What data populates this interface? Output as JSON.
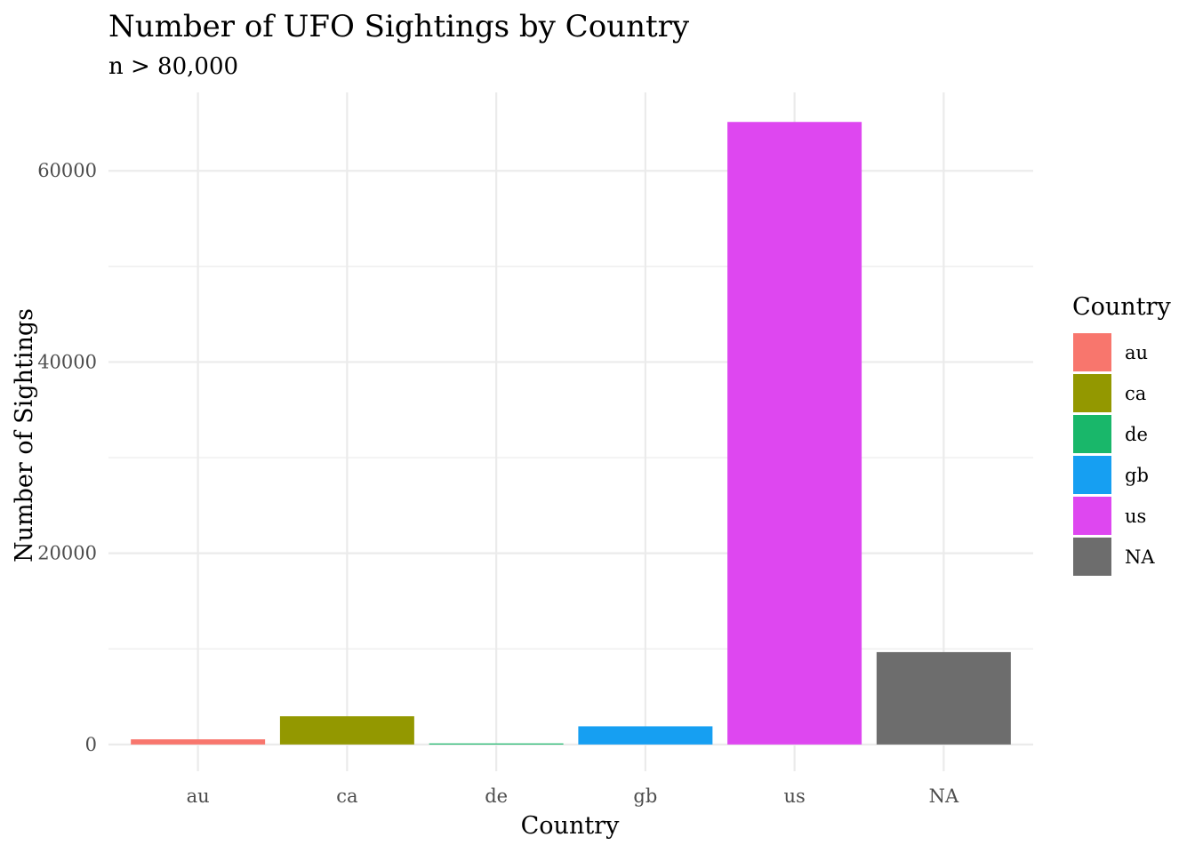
{
  "chart_data": {
    "type": "bar",
    "title": "Number of UFO Sightings by Country",
    "subtitle": "n > 80,000",
    "xlabel": "Country",
    "ylabel": "Number of Sightings",
    "categories": [
      "au",
      "ca",
      "de",
      "gb",
      "us",
      "NA"
    ],
    "values": [
      540,
      2950,
      110,
      1900,
      65110,
      9660
    ],
    "colors": [
      "#F8766D",
      "#939800",
      "#19B76A",
      "#169FF2",
      "#DE47F0",
      "#6D6D6D"
    ],
    "ylim": [
      -2800,
      68200
    ],
    "yticks": [
      0,
      20000,
      40000,
      60000
    ],
    "ytick_labels": [
      "0",
      "20000",
      "40000",
      "60000"
    ],
    "grid": true,
    "legend": {
      "title": "Country",
      "position": "right",
      "entries": [
        "au",
        "ca",
        "de",
        "gb",
        "us",
        "NA"
      ]
    }
  }
}
